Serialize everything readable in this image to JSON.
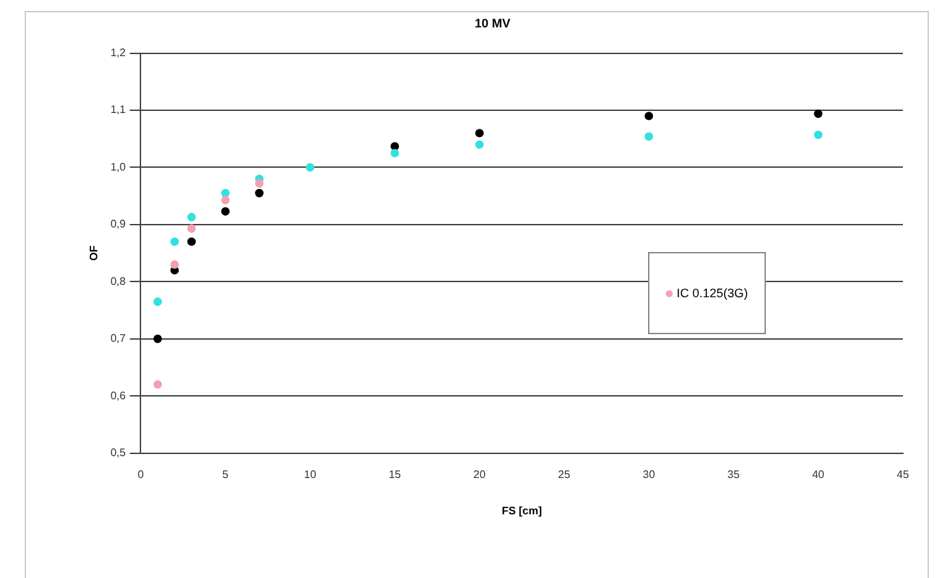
{
  "chart_data": {
    "type": "scatter",
    "title": "10 MV",
    "xlabel": "FS [cm]",
    "ylabel": "OF",
    "x": [
      1,
      2,
      3,
      5,
      7,
      10,
      15,
      20,
      30,
      40
    ],
    "series": [
      {
        "color": "#000000",
        "values": [
          0.7,
          0.82,
          0.87,
          0.923,
          0.955,
          null,
          1.037,
          1.06,
          1.09,
          1.094
        ]
      },
      {
        "color": "#33e0e0",
        "values": [
          0.765,
          0.87,
          0.913,
          0.955,
          0.98,
          1.0,
          1.025,
          1.04,
          1.054,
          1.057
        ]
      },
      {
        "name": "IC 0.125(3G)",
        "color": "#f4a0b0",
        "values": [
          0.62,
          0.83,
          0.893,
          0.943,
          0.972,
          null,
          null,
          null,
          null,
          null
        ]
      }
    ],
    "xlim": [
      0,
      45
    ],
    "xticks": [
      0,
      5,
      10,
      15,
      20,
      25,
      30,
      35,
      40,
      45
    ],
    "ylim": [
      0.5,
      1.2
    ],
    "yticks": [
      {
        "value": 0.5,
        "label": "0,5"
      },
      {
        "value": 0.6,
        "label": "0,6"
      },
      {
        "value": 0.7,
        "label": "0,7"
      },
      {
        "value": 0.8,
        "label": "0,8"
      },
      {
        "value": 0.9,
        "label": "0,9"
      },
      {
        "value": 1.0,
        "label": "1,0"
      },
      {
        "value": 1.1,
        "label": "1,1"
      },
      {
        "value": 1.2,
        "label": "1,2"
      }
    ],
    "grid": "y",
    "legend": "right",
    "marker": "circle"
  }
}
